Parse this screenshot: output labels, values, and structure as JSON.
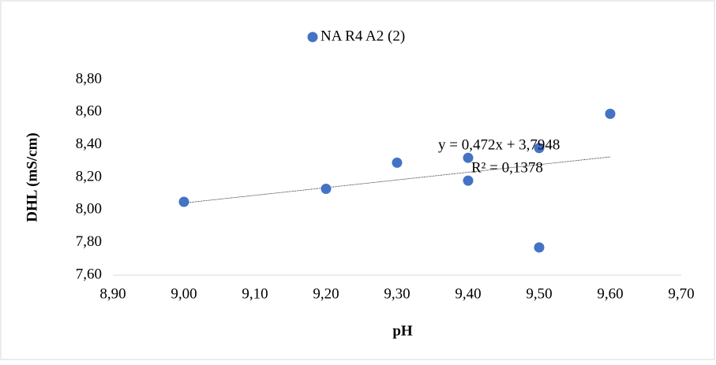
{
  "chart_data": {
    "type": "scatter",
    "legend": "top",
    "color": "#4472c4",
    "series": [
      {
        "name": "NA R4 A2 (2)",
        "color": "#4472c4",
        "x": [
          9.0,
          9.2,
          9.3,
          9.4,
          9.4,
          9.5,
          9.5,
          9.6
        ],
        "values": [
          8.05,
          8.13,
          8.29,
          8.32,
          8.18,
          8.38,
          7.77,
          8.59
        ]
      }
    ],
    "trendline": {
      "equation": "y = 0,472x + 3,7948",
      "r_squared": "R² = 0,1378"
    },
    "x_label": "pH",
    "y_label": "DHL (mS/cm)",
    "xlim": [
      8.9,
      9.7
    ],
    "xticks": [
      {
        "value": 8.9,
        "label": "8,90"
      },
      {
        "value": 9.0,
        "label": "9,00"
      },
      {
        "value": 9.1,
        "label": "9,10"
      },
      {
        "value": 9.2,
        "label": "9,20"
      },
      {
        "value": 9.3,
        "label": "9,30"
      },
      {
        "value": 9.4,
        "label": "9,40"
      },
      {
        "value": 9.5,
        "label": "9,50"
      },
      {
        "value": 9.6,
        "label": "9,60"
      },
      {
        "value": 9.7,
        "label": "9,70"
      }
    ],
    "ylim": [
      7.6,
      8.8
    ],
    "yticks": [
      {
        "value": 7.6,
        "label": "7,60"
      },
      {
        "value": 7.8,
        "label": "7,80"
      },
      {
        "value": 8.0,
        "label": "8,00"
      },
      {
        "value": 8.2,
        "label": "8,20"
      },
      {
        "value": 8.4,
        "label": "8,40"
      },
      {
        "value": 8.6,
        "label": "8,60"
      },
      {
        "value": 8.8,
        "label": "8,80"
      }
    ],
    "grid": false
  }
}
